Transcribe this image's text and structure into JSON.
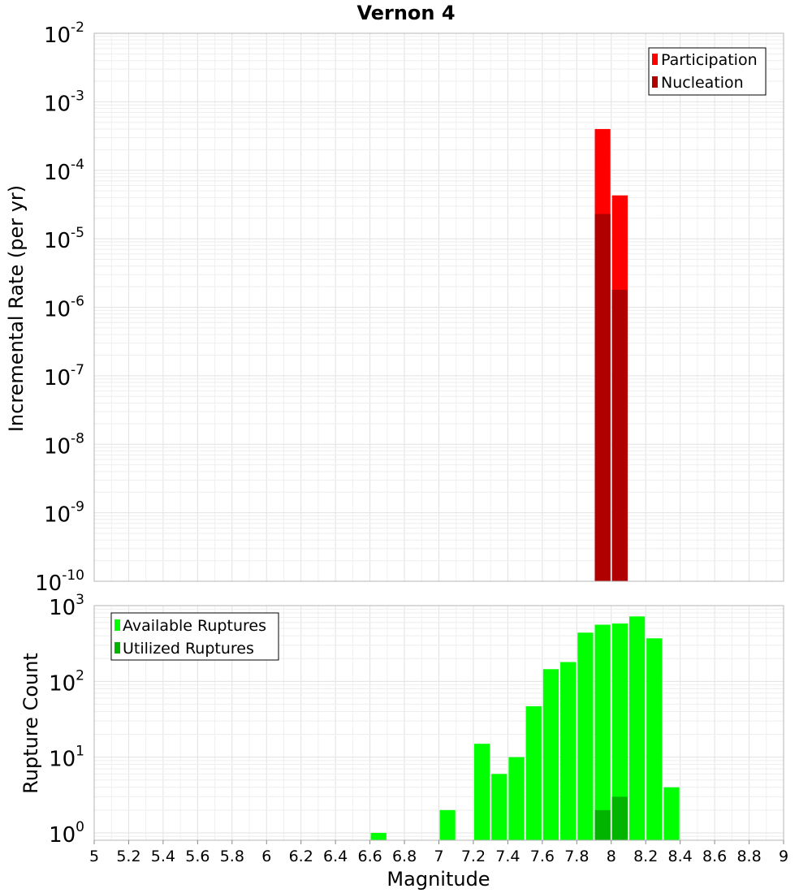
{
  "chart_data": [
    {
      "type": "bar",
      "id": "top",
      "title": "Vernon 4",
      "ylabel": "Incremental Rate (per yr)",
      "xlim": [
        5,
        9
      ],
      "ylim": [
        1e-10,
        0.01
      ],
      "yscale": "log",
      "y_tick_base": "10",
      "y_tick_exponents": [
        "-10",
        "-9",
        "-8",
        "-7",
        "-6",
        "-5",
        "-4",
        "-3",
        "-2"
      ],
      "bin_width": 0.1,
      "grid": true,
      "legend_position": "top-right",
      "series": [
        {
          "name": "Participation",
          "color": "#ff0000",
          "x": [
            7.95,
            8.05
          ],
          "values": [
            0.0004,
            4.3e-05
          ]
        },
        {
          "name": "Nucleation",
          "color": "#b00000",
          "x": [
            7.95,
            8.05
          ],
          "values": [
            2.3e-05,
            1.8e-06
          ]
        }
      ]
    },
    {
      "type": "bar",
      "id": "bottom",
      "xlabel": "Magnitude",
      "ylabel": "Rupture Count",
      "xlim": [
        5,
        9
      ],
      "ylim": [
        0.8,
        1000
      ],
      "yscale": "log",
      "y_tick_base": "10",
      "y_tick_exponents": [
        "0",
        "1",
        "2",
        "3"
      ],
      "x_ticks": [
        "5",
        "5.2",
        "5.4",
        "5.6",
        "5.8",
        "6",
        "6.2",
        "6.4",
        "6.6",
        "6.8",
        "7",
        "7.2",
        "7.4",
        "7.6",
        "7.8",
        "8",
        "8.2",
        "8.4",
        "8.6",
        "8.8",
        "9"
      ],
      "bin_width": 0.1,
      "grid": true,
      "legend_position": "top-left",
      "series": [
        {
          "name": "Available Ruptures",
          "color": "#00ff00",
          "x": [
            6.65,
            7.05,
            7.25,
            7.35,
            7.45,
            7.55,
            7.65,
            7.75,
            7.85,
            7.95,
            8.05,
            8.15,
            8.25,
            8.35
          ],
          "values": [
            1,
            2,
            15,
            6,
            10,
            47,
            145,
            180,
            440,
            560,
            580,
            720,
            370,
            4
          ]
        },
        {
          "name": "Utilized Ruptures",
          "color": "#00b400",
          "x": [
            7.95,
            8.05
          ],
          "values": [
            2,
            3
          ]
        }
      ]
    }
  ]
}
